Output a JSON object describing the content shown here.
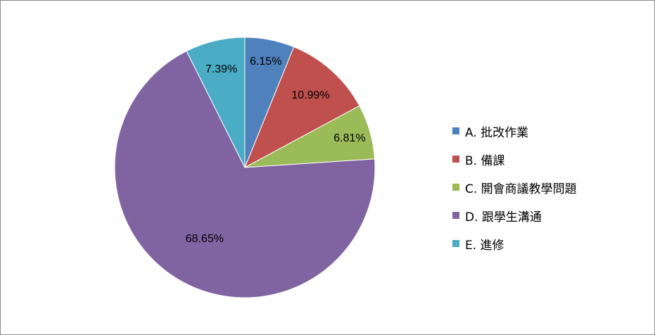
{
  "chart_data": {
    "type": "pie",
    "categories": [
      "A. 批改作業",
      "B. 備課",
      "C. 開會商議教學問題",
      "D. 跟學生溝通",
      "E. 進修"
    ],
    "values": [
      6.15,
      10.99,
      6.81,
      68.65,
      7.39
    ],
    "data_labels": [
      "6.15%",
      "10.99%",
      "6.81%",
      "68.65%",
      "7.39%"
    ],
    "colors": [
      "#4f81bd",
      "#c0504d",
      "#9bbb59",
      "#8064a2",
      "#4bacc6"
    ],
    "start_angle_deg": 0,
    "direction": "clockwise",
    "legend_position": "right",
    "title": ""
  }
}
